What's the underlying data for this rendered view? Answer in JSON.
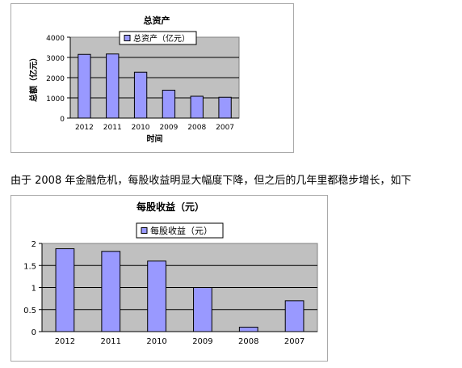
{
  "caption": "由于 2008 年金融危机，每股收益明显大幅度下降，但之后的几年里都稳步增长，如下",
  "chart_data": [
    {
      "type": "bar",
      "title": "总资产",
      "legend": {
        "label": "总资产（亿元）",
        "placement": "top"
      },
      "categories": [
        "2012",
        "2011",
        "2010",
        "2009",
        "2008",
        "2007"
      ],
      "values": [
        3150,
        3170,
        2270,
        1380,
        1080,
        1030
      ],
      "xlabel": "时间",
      "ylabel": "总额（亿元）",
      "ylim": [
        0,
        4000
      ],
      "yticks": [
        "0",
        "1000",
        "2000",
        "3000",
        "4000"
      ],
      "grid": true,
      "colors": {
        "bar": "#9999ff",
        "plot_bg": "#c0c0c0"
      }
    },
    {
      "type": "bar",
      "title": "每股收益（元）",
      "legend": {
        "label": "每股收益（元）",
        "placement": "top"
      },
      "categories": [
        "2012",
        "2011",
        "2010",
        "2009",
        "2008",
        "2007"
      ],
      "values": [
        1.88,
        1.82,
        1.6,
        1.0,
        0.1,
        0.7
      ],
      "xlabel": "",
      "ylabel": "",
      "ylim": [
        0,
        2
      ],
      "yticks": [
        "0",
        "0.5",
        "1",
        "1.5",
        "2"
      ],
      "grid": true,
      "colors": {
        "bar": "#9999ff",
        "plot_bg": "#c0c0c0"
      }
    }
  ]
}
